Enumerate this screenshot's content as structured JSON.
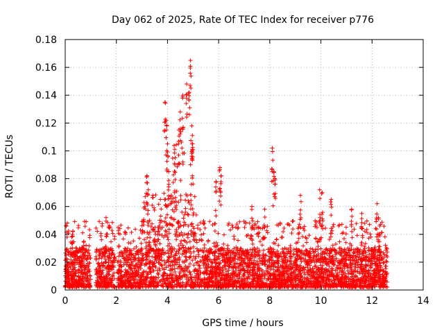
{
  "chart_data": {
    "type": "scatter",
    "title": "Day 062 of 2025, Rate Of TEC Index for receiver p776",
    "xlabel": "GPS time / hours",
    "ylabel": "ROTI / TECUs",
    "xlim": [
      0,
      14
    ],
    "ylim": [
      0,
      0.18
    ],
    "xticks": [
      0,
      2,
      4,
      6,
      8,
      10,
      12,
      14
    ],
    "yticks": [
      0,
      0.02,
      0.04,
      0.06,
      0.08,
      0.1,
      0.12,
      0.14,
      0.16,
      0.18
    ],
    "xtick_labels": [
      "0",
      "2",
      "4",
      "6",
      "8",
      "10",
      "12",
      "14"
    ],
    "ytick_labels": [
      "0",
      "0.02",
      "0.04",
      "0.06",
      "0.08",
      "0.1",
      "0.12",
      "0.14",
      "0.16",
      "0.18"
    ],
    "grid": true,
    "marker": "+",
    "marker_color": "#ff0000",
    "data_extent_hours": [
      0,
      12.6
    ],
    "notable_points": [
      {
        "x": 3.2,
        "y": 0.082
      },
      {
        "x": 3.25,
        "y": 0.072
      },
      {
        "x": 3.9,
        "y": 0.135
      },
      {
        "x": 3.95,
        "y": 0.122
      },
      {
        "x": 4.0,
        "y": 0.105
      },
      {
        "x": 4.05,
        "y": 0.085
      },
      {
        "x": 4.6,
        "y": 0.14
      },
      {
        "x": 4.75,
        "y": 0.148
      },
      {
        "x": 4.9,
        "y": 0.165
      },
      {
        "x": 4.85,
        "y": 0.142
      },
      {
        "x": 4.5,
        "y": 0.128
      },
      {
        "x": 4.45,
        "y": 0.115
      },
      {
        "x": 4.3,
        "y": 0.095
      },
      {
        "x": 4.95,
        "y": 0.118
      },
      {
        "x": 4.98,
        "y": 0.105
      },
      {
        "x": 6.05,
        "y": 0.088
      },
      {
        "x": 6.1,
        "y": 0.082
      },
      {
        "x": 5.9,
        "y": 0.078
      },
      {
        "x": 8.1,
        "y": 0.102
      },
      {
        "x": 8.2,
        "y": 0.08
      },
      {
        "x": 8.15,
        "y": 0.085
      },
      {
        "x": 9.95,
        "y": 0.072
      },
      {
        "x": 10.05,
        "y": 0.07
      },
      {
        "x": 9.2,
        "y": 0.068
      },
      {
        "x": 10.4,
        "y": 0.065
      },
      {
        "x": 12.2,
        "y": 0.062
      },
      {
        "x": 12.25,
        "y": 0.052
      },
      {
        "x": 12.3,
        "y": 0.046
      },
      {
        "x": 11.2,
        "y": 0.058
      },
      {
        "x": 7.3,
        "y": 0.06
      },
      {
        "x": 7.8,
        "y": 0.058
      },
      {
        "x": 1.6,
        "y": 0.052
      },
      {
        "x": 0.3,
        "y": 0.042
      },
      {
        "x": 11.6,
        "y": 0.055
      }
    ],
    "background_band": {
      "y_min": 0.002,
      "y_max": 0.03,
      "typical": 0.015
    }
  }
}
